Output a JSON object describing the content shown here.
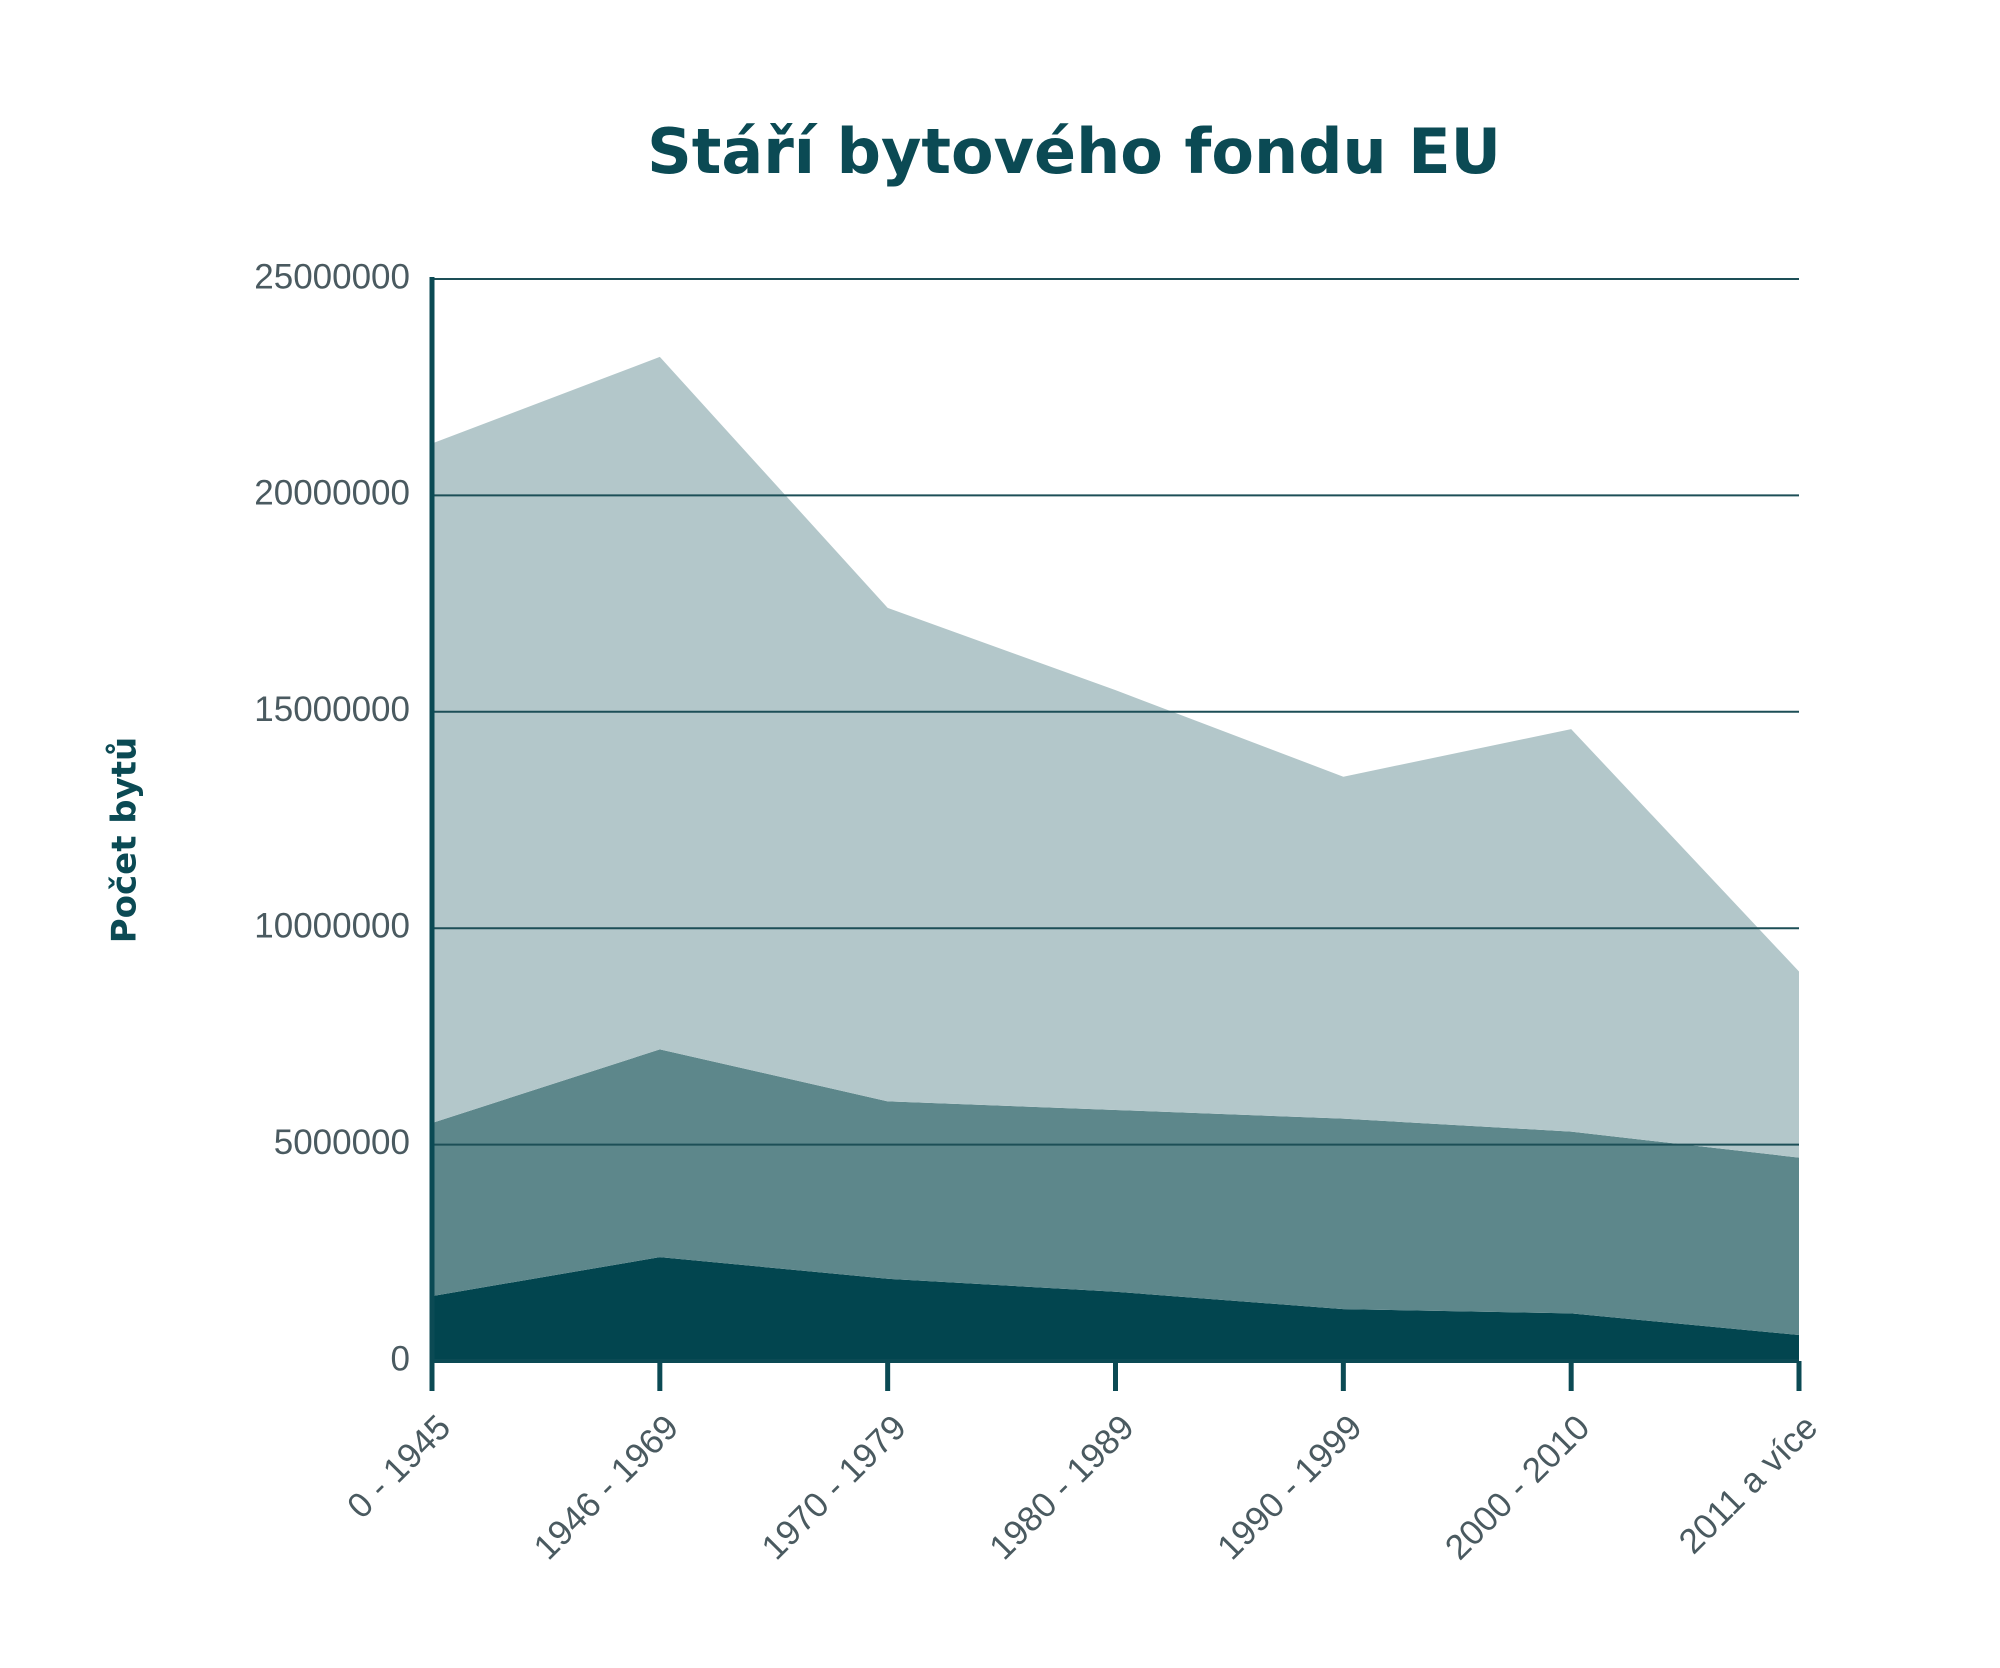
{
  "chart_data": {
    "type": "stacked_area",
    "title": "Stáří bytového fondu EU",
    "y_label": "Počet bytů",
    "categories": [
      "0 - 1945",
      "1946 - 1969",
      "1970 - 1979",
      "1980 - 1989",
      "1990 - 1999",
      "2000 - 2010",
      "2011 a více"
    ],
    "series": [
      {
        "color": "#02454f",
        "values": [
          1500000,
          2400000,
          1900000,
          1600000,
          1200000,
          1100000,
          600000
        ]
      },
      {
        "color": "#5d878b",
        "values": [
          4000000,
          4800000,
          4100000,
          4200000,
          4400000,
          4200000,
          4100000
        ]
      },
      {
        "color": "#b3c7ca",
        "values": [
          15700000,
          16000000,
          11400000,
          9700000,
          7900000,
          9300000,
          4300000
        ]
      }
    ],
    "ylim": [
      0,
      25000000
    ],
    "yticks": [
      0,
      5000000,
      10000000,
      15000000,
      20000000,
      25000000
    ],
    "grid": true
  }
}
